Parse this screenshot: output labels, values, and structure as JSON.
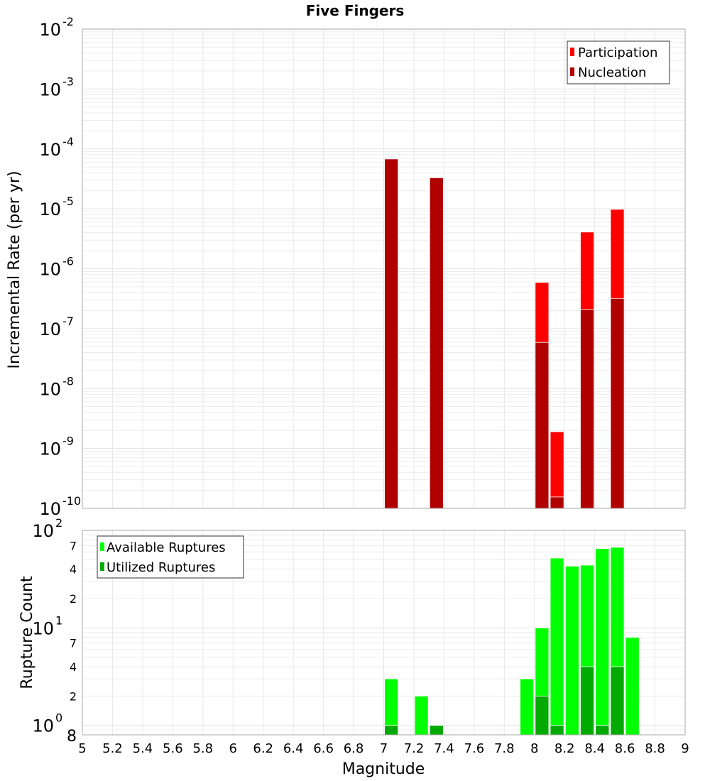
{
  "chart_data": [
    {
      "type": "bar",
      "title": "Five Fingers",
      "xlabel": "Magnitude",
      "ylabel": "Incremental Rate (per yr)",
      "yscale": "log",
      "ylim": [
        1e-10,
        0.01
      ],
      "xlim": [
        5,
        9
      ],
      "grid": true,
      "legend_position": "top-right",
      "y_tick_exponents": [
        "-2",
        "-3",
        "-4",
        "-5",
        "-6",
        "-7",
        "-8",
        "-9",
        "-10"
      ],
      "bar_width": 0.09,
      "series": [
        {
          "name": "Participation",
          "color": "#ff0000",
          "x": [
            7.05,
            7.35,
            8.05,
            8.15,
            8.35,
            8.55
          ],
          "values": [
            6.8e-05,
            3.3e-05,
            5.9e-07,
            1.9e-09,
            4.1e-06,
            9.8e-06
          ]
        },
        {
          "name": "Nucleation",
          "color": "#b00000",
          "x": [
            7.05,
            7.35,
            8.05,
            8.15,
            8.35,
            8.55
          ],
          "values": [
            6.8e-05,
            3.3e-05,
            5.9e-08,
            1.55e-10,
            2.1e-07,
            3.2e-07
          ]
        }
      ]
    },
    {
      "type": "bar",
      "xlabel": "Magnitude",
      "ylabel": "Rupture Count",
      "yscale": "log",
      "ylim": [
        0.8,
        100
      ],
      "xlim": [
        5,
        9
      ],
      "grid": true,
      "legend_position": "top-left",
      "y_tick_labels": [
        {
          "v": 100,
          "base": "10",
          "exp": "2"
        },
        {
          "v": 70,
          "minor": "7"
        },
        {
          "v": 40,
          "minor": "4"
        },
        {
          "v": 20,
          "minor": "2"
        },
        {
          "v": 10,
          "base": "10",
          "exp": "1"
        },
        {
          "v": 7,
          "minor": "7"
        },
        {
          "v": 4,
          "minor": "4"
        },
        {
          "v": 2,
          "minor": "2"
        },
        {
          "v": 1,
          "base": "10",
          "exp": "0"
        },
        {
          "v": 0.8,
          "minor": "8"
        }
      ],
      "x_ticks": [
        "5",
        "5.2",
        "5.4",
        "5.6",
        "5.8",
        "6",
        "6.2",
        "6.4",
        "6.6",
        "6.8",
        "7",
        "7.2",
        "7.4",
        "7.6",
        "7.8",
        "8",
        "8.2",
        "8.4",
        "8.6",
        "8.8",
        "9"
      ],
      "bar_width": 0.09,
      "series": [
        {
          "name": "Available Ruptures",
          "color": "#00ff00",
          "x": [
            7.05,
            7.25,
            7.95,
            8.05,
            8.15,
            8.25,
            8.35,
            8.45,
            8.55,
            8.65
          ],
          "values": [
            3,
            2,
            3,
            10,
            52,
            43,
            44,
            65,
            67,
            8
          ]
        },
        {
          "name": "Utilized Ruptures",
          "color": "#00aa00",
          "x": [
            7.05,
            7.35,
            8.05,
            8.15,
            8.35,
            8.45,
            8.55
          ],
          "values": [
            1,
            1,
            2,
            1,
            4,
            1,
            4
          ]
        }
      ]
    }
  ]
}
